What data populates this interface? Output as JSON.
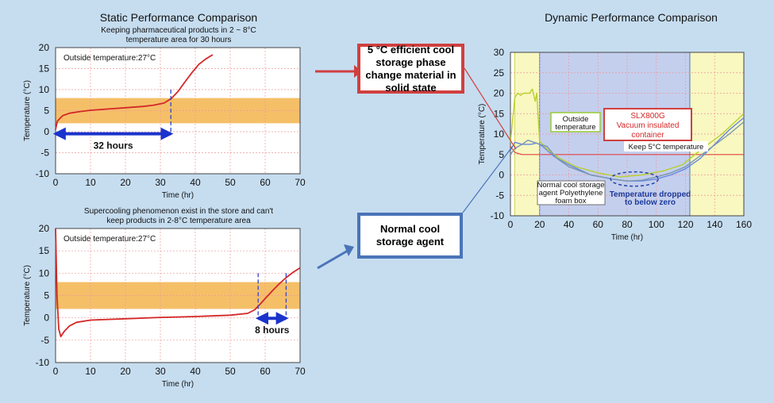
{
  "left_title": "Static Performance Comparison",
  "right_title": "Dynamic Performance Comparison",
  "callouts": {
    "pcm": "5 °C efficient cool storage phase change material in solid state",
    "normal": "Normal cool storage agent"
  },
  "colors": {
    "band": "#f3b44e",
    "red": "#d42828",
    "blue_arrow": "#1a33cc",
    "pcm_box": "#d04040",
    "normal_box": "#4a74b8",
    "yellow": "#f8f8c0",
    "panel_blue": "#c4cfee"
  },
  "chart_data": [
    {
      "type": "line",
      "title": "Keeping pharmaceutical products in 2 ~ 8°C temperature area for 30 hours",
      "xlabel": "Time (hr)",
      "ylabel": "Temperature (°C)",
      "xlim": [
        0,
        70
      ],
      "ylim": [
        -10,
        20
      ],
      "x_ticks": [
        0,
        10,
        20,
        30,
        40,
        50,
        60,
        70
      ],
      "y_ticks": [
        -10,
        -5,
        0,
        5,
        10,
        15,
        20
      ],
      "grid": true,
      "band": [
        2,
        8
      ],
      "annotation": "Outside temperature:27°C",
      "span_label": "32 hours",
      "span": [
        0,
        33
      ],
      "series": [
        {
          "x": [
            0,
            0.5,
            2,
            4,
            7,
            10,
            15,
            20,
            25,
            28,
            31,
            33,
            35,
            37,
            39,
            41,
            43,
            45
          ],
          "y": [
            0.5,
            2.5,
            3.8,
            4.4,
            4.8,
            5.1,
            5.4,
            5.7,
            6.0,
            6.3,
            6.8,
            7.8,
            9.5,
            11.8,
            14.0,
            16.0,
            17.3,
            18.3
          ]
        }
      ]
    },
    {
      "type": "line",
      "title": "Supercooling phenomenon exist in the store and can't keep products in 2-8°C temperature area",
      "xlabel": "Time (hr)",
      "ylabel": "Temperature (°C)",
      "xlim": [
        0,
        70
      ],
      "ylim": [
        -10,
        20
      ],
      "x_ticks": [
        0,
        10,
        20,
        30,
        40,
        50,
        60,
        70
      ],
      "y_ticks": [
        -10,
        -5,
        0,
        5,
        10,
        15,
        20
      ],
      "grid": true,
      "band": [
        2,
        8
      ],
      "annotation": "Outside temperature:27°C",
      "span_label": "8 hours",
      "span": [
        58,
        66
      ],
      "series": [
        {
          "x": [
            0,
            0.4,
            0.9,
            1.5,
            2.5,
            4,
            6,
            10,
            20,
            30,
            40,
            50,
            55,
            57,
            58.5,
            60,
            62,
            64,
            66,
            68,
            70
          ],
          "y": [
            20,
            5,
            -2.5,
            -4.2,
            -3.0,
            -1.8,
            -1.0,
            -0.5,
            -0.2,
            0.1,
            0.3,
            0.6,
            1.0,
            1.8,
            3.0,
            4.3,
            6.0,
            7.6,
            9.0,
            10.2,
            11.2
          ]
        }
      ]
    },
    {
      "type": "line",
      "xlabel": "Time (hr)",
      "ylabel": "Temperature (°C)",
      "xlim": [
        0,
        160
      ],
      "ylim": [
        -10,
        30
      ],
      "x_ticks": [
        0,
        20,
        40,
        60,
        80,
        100,
        120,
        140,
        160
      ],
      "y_ticks": [
        -10,
        -5,
        0,
        5,
        10,
        15,
        20,
        25,
        30
      ],
      "grid": true,
      "yellow_regions": [
        [
          3,
          20
        ],
        [
          123,
          160
        ]
      ],
      "blue_region": [
        20,
        123
      ],
      "labels": {
        "outside": "Outside temperature",
        "slx": "SLX800G\nVacuum insulated\ncontainer",
        "keep": "Keep 5°C temperature",
        "normal": "Normal cool storage\nagent Polyethylene\nfoam box",
        "dropped": "Temperature dropped\nto below zero"
      },
      "series": [
        {
          "x": [
            0,
            3,
            8,
            14,
            20,
            40,
            60,
            80,
            100,
            120,
            140,
            160
          ],
          "y": [
            7,
            5.5,
            5,
            5,
            5,
            5,
            5,
            5,
            5,
            5,
            5,
            5
          ]
        },
        {
          "x": [
            0,
            3,
            8,
            14,
            18,
            22,
            30,
            40,
            55,
            70,
            80,
            90,
            100,
            110,
            120,
            130,
            140,
            150,
            160
          ],
          "y": [
            6,
            8,
            7.5,
            7.5,
            7.8,
            7,
            4.5,
            2.5,
            0,
            -1,
            -1.5,
            -1.5,
            -1,
            0,
            1.5,
            4,
            7.5,
            11,
            14
          ]
        },
        {
          "x": [
            0,
            3,
            5,
            7,
            9,
            13,
            15,
            17,
            18,
            20,
            22,
            26,
            34,
            45,
            60,
            75,
            90,
            105,
            118,
            130,
            145,
            160
          ],
          "y": [
            8,
            19,
            20,
            19.5,
            20,
            20,
            21,
            18,
            20,
            8.2,
            7.5,
            6,
            4,
            2,
            0.5,
            -0.5,
            0,
            1,
            2.5,
            6,
            10,
            15
          ]
        },
        {
          "x": [
            0,
            3,
            8,
            12,
            16,
            20,
            25,
            32,
            40,
            55,
            70,
            80,
            90,
            100,
            110,
            120,
            135,
            150,
            160
          ],
          "y": [
            5,
            6.5,
            7.5,
            8.5,
            8,
            7.5,
            7,
            4,
            2,
            0,
            -1,
            -1.5,
            -1.3,
            -0.5,
            0.5,
            2,
            6,
            10,
            13
          ]
        }
      ]
    }
  ]
}
